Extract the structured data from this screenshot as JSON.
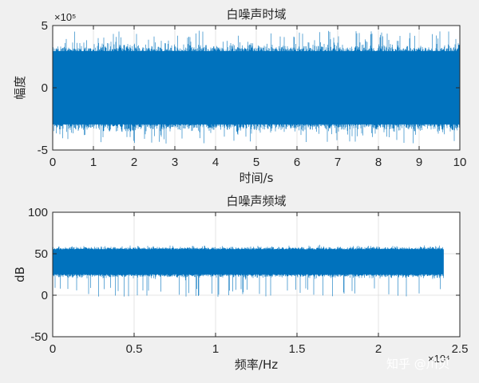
{
  "chart_data": [
    {
      "type": "line",
      "title": "白噪声时域",
      "xlabel": "时间/s",
      "ylabel": "幅度",
      "xlim": [
        0,
        10
      ],
      "ylim": [
        -500000,
        500000
      ],
      "x_ticks": [
        0,
        1,
        2,
        3,
        4,
        5,
        6,
        7,
        8,
        9,
        10
      ],
      "x_tick_labels": [
        "0",
        "1",
        "2",
        "3",
        "4",
        "5",
        "6",
        "7",
        "8",
        "9",
        "10"
      ],
      "y_ticks": [
        -500000,
        0,
        500000
      ],
      "y_tick_labels": [
        "-5",
        "0",
        "5"
      ],
      "y_exponent_label": "×10⁵",
      "grid": true,
      "series": [
        {
          "color": "#0072bd",
          "x_range": [
            0,
            10
          ],
          "band_typical": [
            -320000,
            320000
          ],
          "band_extreme": [
            -450000,
            460000
          ],
          "center": 0
        }
      ]
    },
    {
      "type": "line",
      "title": "白噪声频域",
      "xlabel": "频率/Hz",
      "ylabel": "dB",
      "xlim": [
        0,
        25000
      ],
      "ylim": [
        -50,
        100
      ],
      "x_ticks": [
        0,
        5000,
        10000,
        15000,
        20000,
        25000
      ],
      "x_tick_labels": [
        "0",
        "0.5",
        "1",
        "1.5",
        "2",
        "2.5"
      ],
      "x_exponent_label": "×10⁴",
      "y_ticks": [
        -50,
        0,
        50,
        100
      ],
      "y_tick_labels": [
        "-50",
        "0",
        "50",
        "100"
      ],
      "grid": true,
      "series": [
        {
          "color": "#0072bd",
          "x_range": [
            0,
            24000
          ],
          "band_typical": [
            23,
            57
          ],
          "band_extreme": [
            -2,
            60
          ],
          "center": 42
        }
      ]
    }
  ],
  "watermark": "知乎 @川贝"
}
